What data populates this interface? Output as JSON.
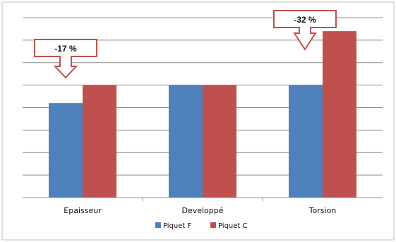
{
  "chart_data": {
    "type": "bar",
    "title": "",
    "xlabel": "",
    "ylabel": "",
    "categories": [
      "Epaisseur",
      "Developpé",
      "Torsion"
    ],
    "series": [
      {
        "name": "Piquet F",
        "color": "#4F81BD",
        "values": [
          4.2,
          5.0,
          5.0
        ]
      },
      {
        "name": "Piquet C",
        "color": "#C0504D",
        "values": [
          5.0,
          5.0,
          7.4
        ]
      }
    ],
    "ylim": [
      0,
      8
    ],
    "y_tick_labels_shown": false,
    "grid": true,
    "legend": "bottom",
    "annotations": [
      {
        "text": "-17 %",
        "category": "Epaisseur",
        "shape": "down-arrow-callout"
      },
      {
        "text": "-32 %",
        "category": "Torsion",
        "shape": "down-arrow-callout"
      }
    ]
  }
}
